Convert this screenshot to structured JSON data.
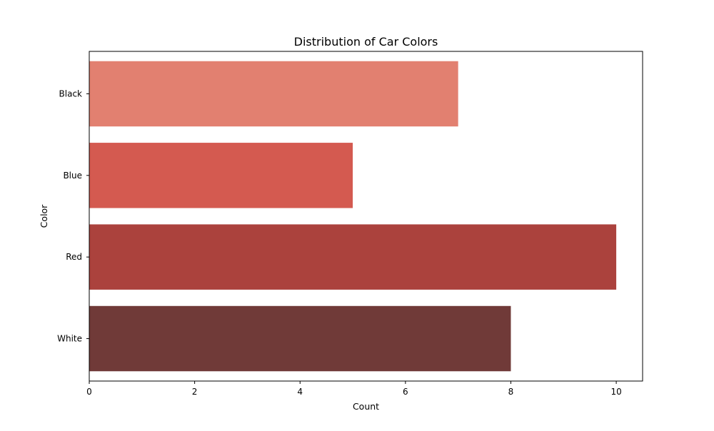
{
  "chart_data": {
    "type": "bar",
    "orientation": "horizontal",
    "title": "Distribution of Car Colors",
    "xlabel": "Count",
    "ylabel": "Color",
    "categories": [
      "Black",
      "Blue",
      "Red",
      "White"
    ],
    "values": [
      7,
      5,
      10,
      8
    ],
    "bar_colors": [
      "#e28070",
      "#d45a50",
      "#ab423d",
      "#703a38"
    ],
    "xlim": [
      0,
      10.5
    ],
    "xticks": [
      0,
      2,
      4,
      6,
      8,
      10
    ],
    "grid": false,
    "legend": "none"
  }
}
